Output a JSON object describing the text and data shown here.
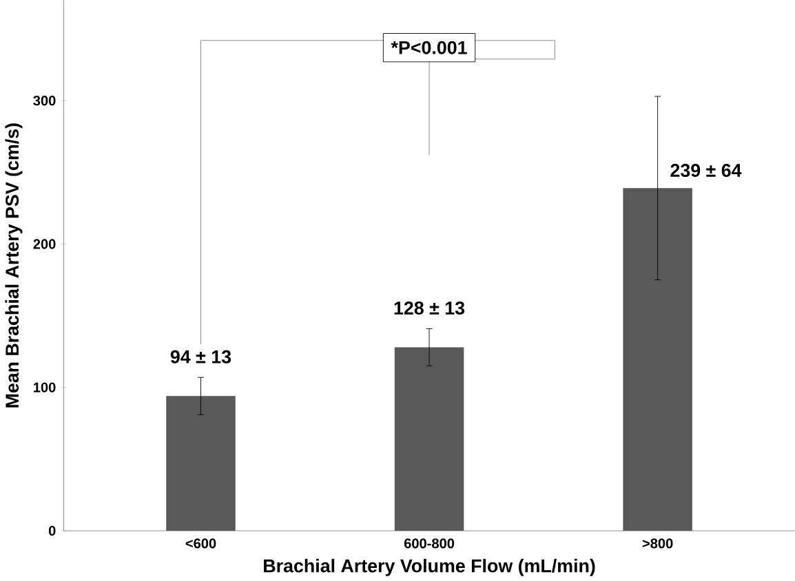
{
  "chart_data": {
    "type": "bar",
    "xlabel": "Brachial Artery Volume Flow (mL/min)",
    "ylabel": "Mean Brachial Artery PSV (cm/s)",
    "categories": [
      "<600",
      "600-800",
      ">800"
    ],
    "values": [
      94,
      128,
      239
    ],
    "errors": [
      13,
      13,
      64
    ],
    "color": "#595959",
    "value_labels": [
      "94 ± 13",
      "128 ± 13",
      "239 ± 64"
    ],
    "annotations": [
      "*P<0.001"
    ],
    "ylim": [
      0,
      370
    ],
    "yticks": [
      0,
      100,
      200,
      300
    ],
    "grid": false
  }
}
